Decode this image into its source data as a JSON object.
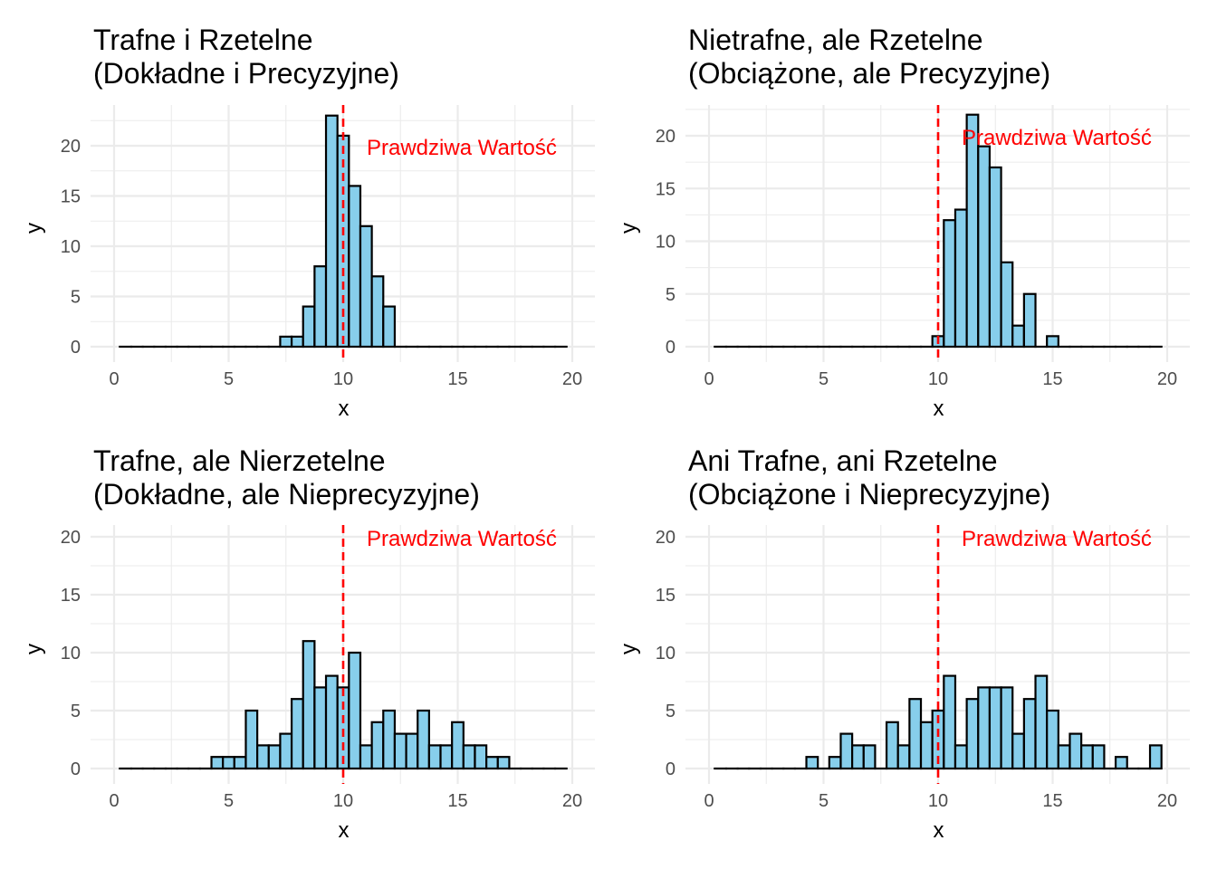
{
  "chart_data": [
    {
      "type": "bar",
      "title_line1": "Trafne i Rzetelne",
      "title_line2": "(Dokładne i Precyzyjne)",
      "xlabel": "x",
      "ylabel": "y",
      "xlim": [
        0,
        20
      ],
      "ylim": [
        0,
        23
      ],
      "xticks": [
        "0",
        "5",
        "10",
        "15",
        "20"
      ],
      "yticks": [
        "0",
        "5",
        "10",
        "15",
        "20"
      ],
      "yticks_values": [
        0,
        5,
        10,
        15,
        20
      ],
      "true_value": 10,
      "annotation": "Prawdziwa Wartość",
      "bin_start": 0.25,
      "bin_width": 0.5,
      "counts": [
        0,
        0,
        0,
        0,
        0,
        0,
        0,
        0,
        0,
        0,
        0,
        0,
        0,
        0,
        1,
        1,
        4,
        8,
        23,
        21,
        16,
        12,
        7,
        4,
        0,
        0,
        0,
        0,
        0,
        0,
        0,
        0,
        0,
        0,
        0,
        0,
        0,
        0,
        0
      ],
      "grid": true
    },
    {
      "type": "bar",
      "title_line1": "Nietrafne, ale Rzetelne",
      "title_line2": "(Obciążone, ale Precyzyjne)",
      "xlabel": "x",
      "ylabel": "y",
      "xlim": [
        0,
        20
      ],
      "ylim": [
        0,
        22
      ],
      "xticks": [
        "0",
        "5",
        "10",
        "15",
        "20"
      ],
      "yticks": [
        "0",
        "5",
        "10",
        "15",
        "20"
      ],
      "yticks_values": [
        0,
        5,
        10,
        15,
        20
      ],
      "true_value": 10,
      "annotation": "Prawdziwa Wartość",
      "bin_start": 0.25,
      "bin_width": 0.5,
      "counts": [
        0,
        0,
        0,
        0,
        0,
        0,
        0,
        0,
        0,
        0,
        0,
        0,
        0,
        0,
        0,
        0,
        0,
        0,
        0,
        1,
        12,
        13,
        22,
        19,
        17,
        8,
        2,
        5,
        0,
        1,
        0,
        0,
        0,
        0,
        0,
        0,
        0,
        0,
        0
      ],
      "grid": true
    },
    {
      "type": "bar",
      "title_line1": "Trafne, ale Nierzetelne",
      "title_line2": "(Dokładne, ale Nieprecyzyjne)",
      "xlabel": "x",
      "ylabel": "y",
      "xlim": [
        0,
        20
      ],
      "ylim": [
        0,
        20
      ],
      "xticks": [
        "0",
        "5",
        "10",
        "15",
        "20"
      ],
      "yticks": [
        "0",
        "5",
        "10",
        "15",
        "20"
      ],
      "yticks_values": [
        0,
        5,
        10,
        15,
        20
      ],
      "true_value": 10,
      "annotation": "Prawdziwa Wartość",
      "bin_start": 0.25,
      "bin_width": 0.5,
      "counts": [
        0,
        0,
        0,
        0,
        0,
        0,
        0,
        0,
        1,
        1,
        1,
        5,
        2,
        2,
        3,
        6,
        11,
        7,
        8,
        7,
        10,
        2,
        4,
        5,
        3,
        3,
        5,
        2,
        2,
        4,
        2,
        2,
        1,
        1,
        0,
        0,
        0,
        0,
        0
      ],
      "grid": true
    },
    {
      "type": "bar",
      "title_line1": "Ani Trafne, ani Rzetelne",
      "title_line2": "(Obciążone i Nieprecyzyjne)",
      "xlabel": "x",
      "ylabel": "y",
      "xlim": [
        0,
        20
      ],
      "ylim": [
        0,
        20
      ],
      "xticks": [
        "0",
        "5",
        "10",
        "15",
        "20"
      ],
      "yticks": [
        "0",
        "5",
        "10",
        "15",
        "20"
      ],
      "yticks_values": [
        0,
        5,
        10,
        15,
        20
      ],
      "true_value": 10,
      "annotation": "Prawdziwa Wartość",
      "bin_start": 0.25,
      "bin_width": 0.5,
      "counts": [
        0,
        0,
        0,
        0,
        0,
        0,
        0,
        0,
        1,
        0,
        1,
        3,
        2,
        2,
        0,
        4,
        2,
        6,
        4,
        5,
        8,
        2,
        6,
        7,
        7,
        7,
        3,
        6,
        8,
        5,
        2,
        3,
        2,
        2,
        0,
        1,
        0,
        0,
        2
      ],
      "grid": true
    }
  ],
  "colors": {
    "bar_fill": "#87ceeb",
    "bar_outline": "#000000",
    "true_value_line": "#ff0000",
    "annotation_text": "#ff0000"
  }
}
